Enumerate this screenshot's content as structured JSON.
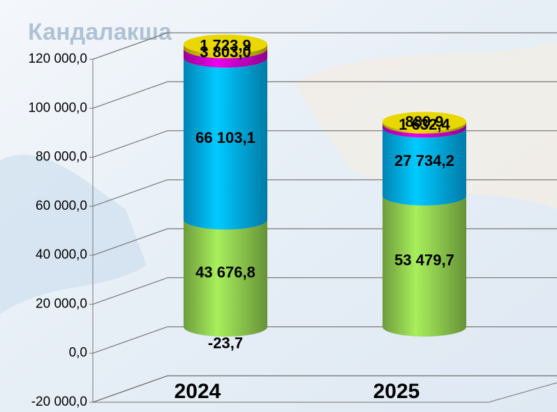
{
  "background_text": "Кандалакша",
  "chart_data": {
    "type": "cylinder",
    "categories": [
      "2024",
      "2025"
    ],
    "series": [
      {
        "color": "#92d050",
        "values": [
          43676.8,
          53479.7
        ],
        "value_labels": [
          "43 676,8",
          "53 479,7"
        ]
      },
      {
        "color": "#4f81bd",
        "values": [
          -23.7,
          null
        ],
        "value_labels": [
          "-23,7",
          null
        ]
      },
      {
        "color": "#00b0f0",
        "values": [
          66103.1,
          27734.2
        ],
        "value_labels": [
          "66 103,1",
          "27 734,2"
        ]
      },
      {
        "color": "#cc00cc",
        "values": [
          3803.0,
          1632.4
        ],
        "value_labels": [
          "3 803,0",
          "1 632,4"
        ]
      },
      {
        "color": "#d4c400",
        "values": [
          1723.9,
          880.9
        ],
        "value_labels": [
          "1 723,9",
          "880.9"
        ]
      }
    ],
    "ylim": [
      -20000,
      120000
    ],
    "yticks": [
      {
        "value": -20000,
        "label": "-20 000,0"
      },
      {
        "value": 0,
        "label": "0,0"
      },
      {
        "value": 20000,
        "label": "20 000,0"
      },
      {
        "value": 40000,
        "label": "40 000,0"
      },
      {
        "value": 60000,
        "label": "60 000,0"
      },
      {
        "value": 80000,
        "label": "80 000,0"
      },
      {
        "value": 100000,
        "label": "100 000,0"
      },
      {
        "value": 120000,
        "label": "120 000,0"
      }
    ],
    "grid": true
  }
}
